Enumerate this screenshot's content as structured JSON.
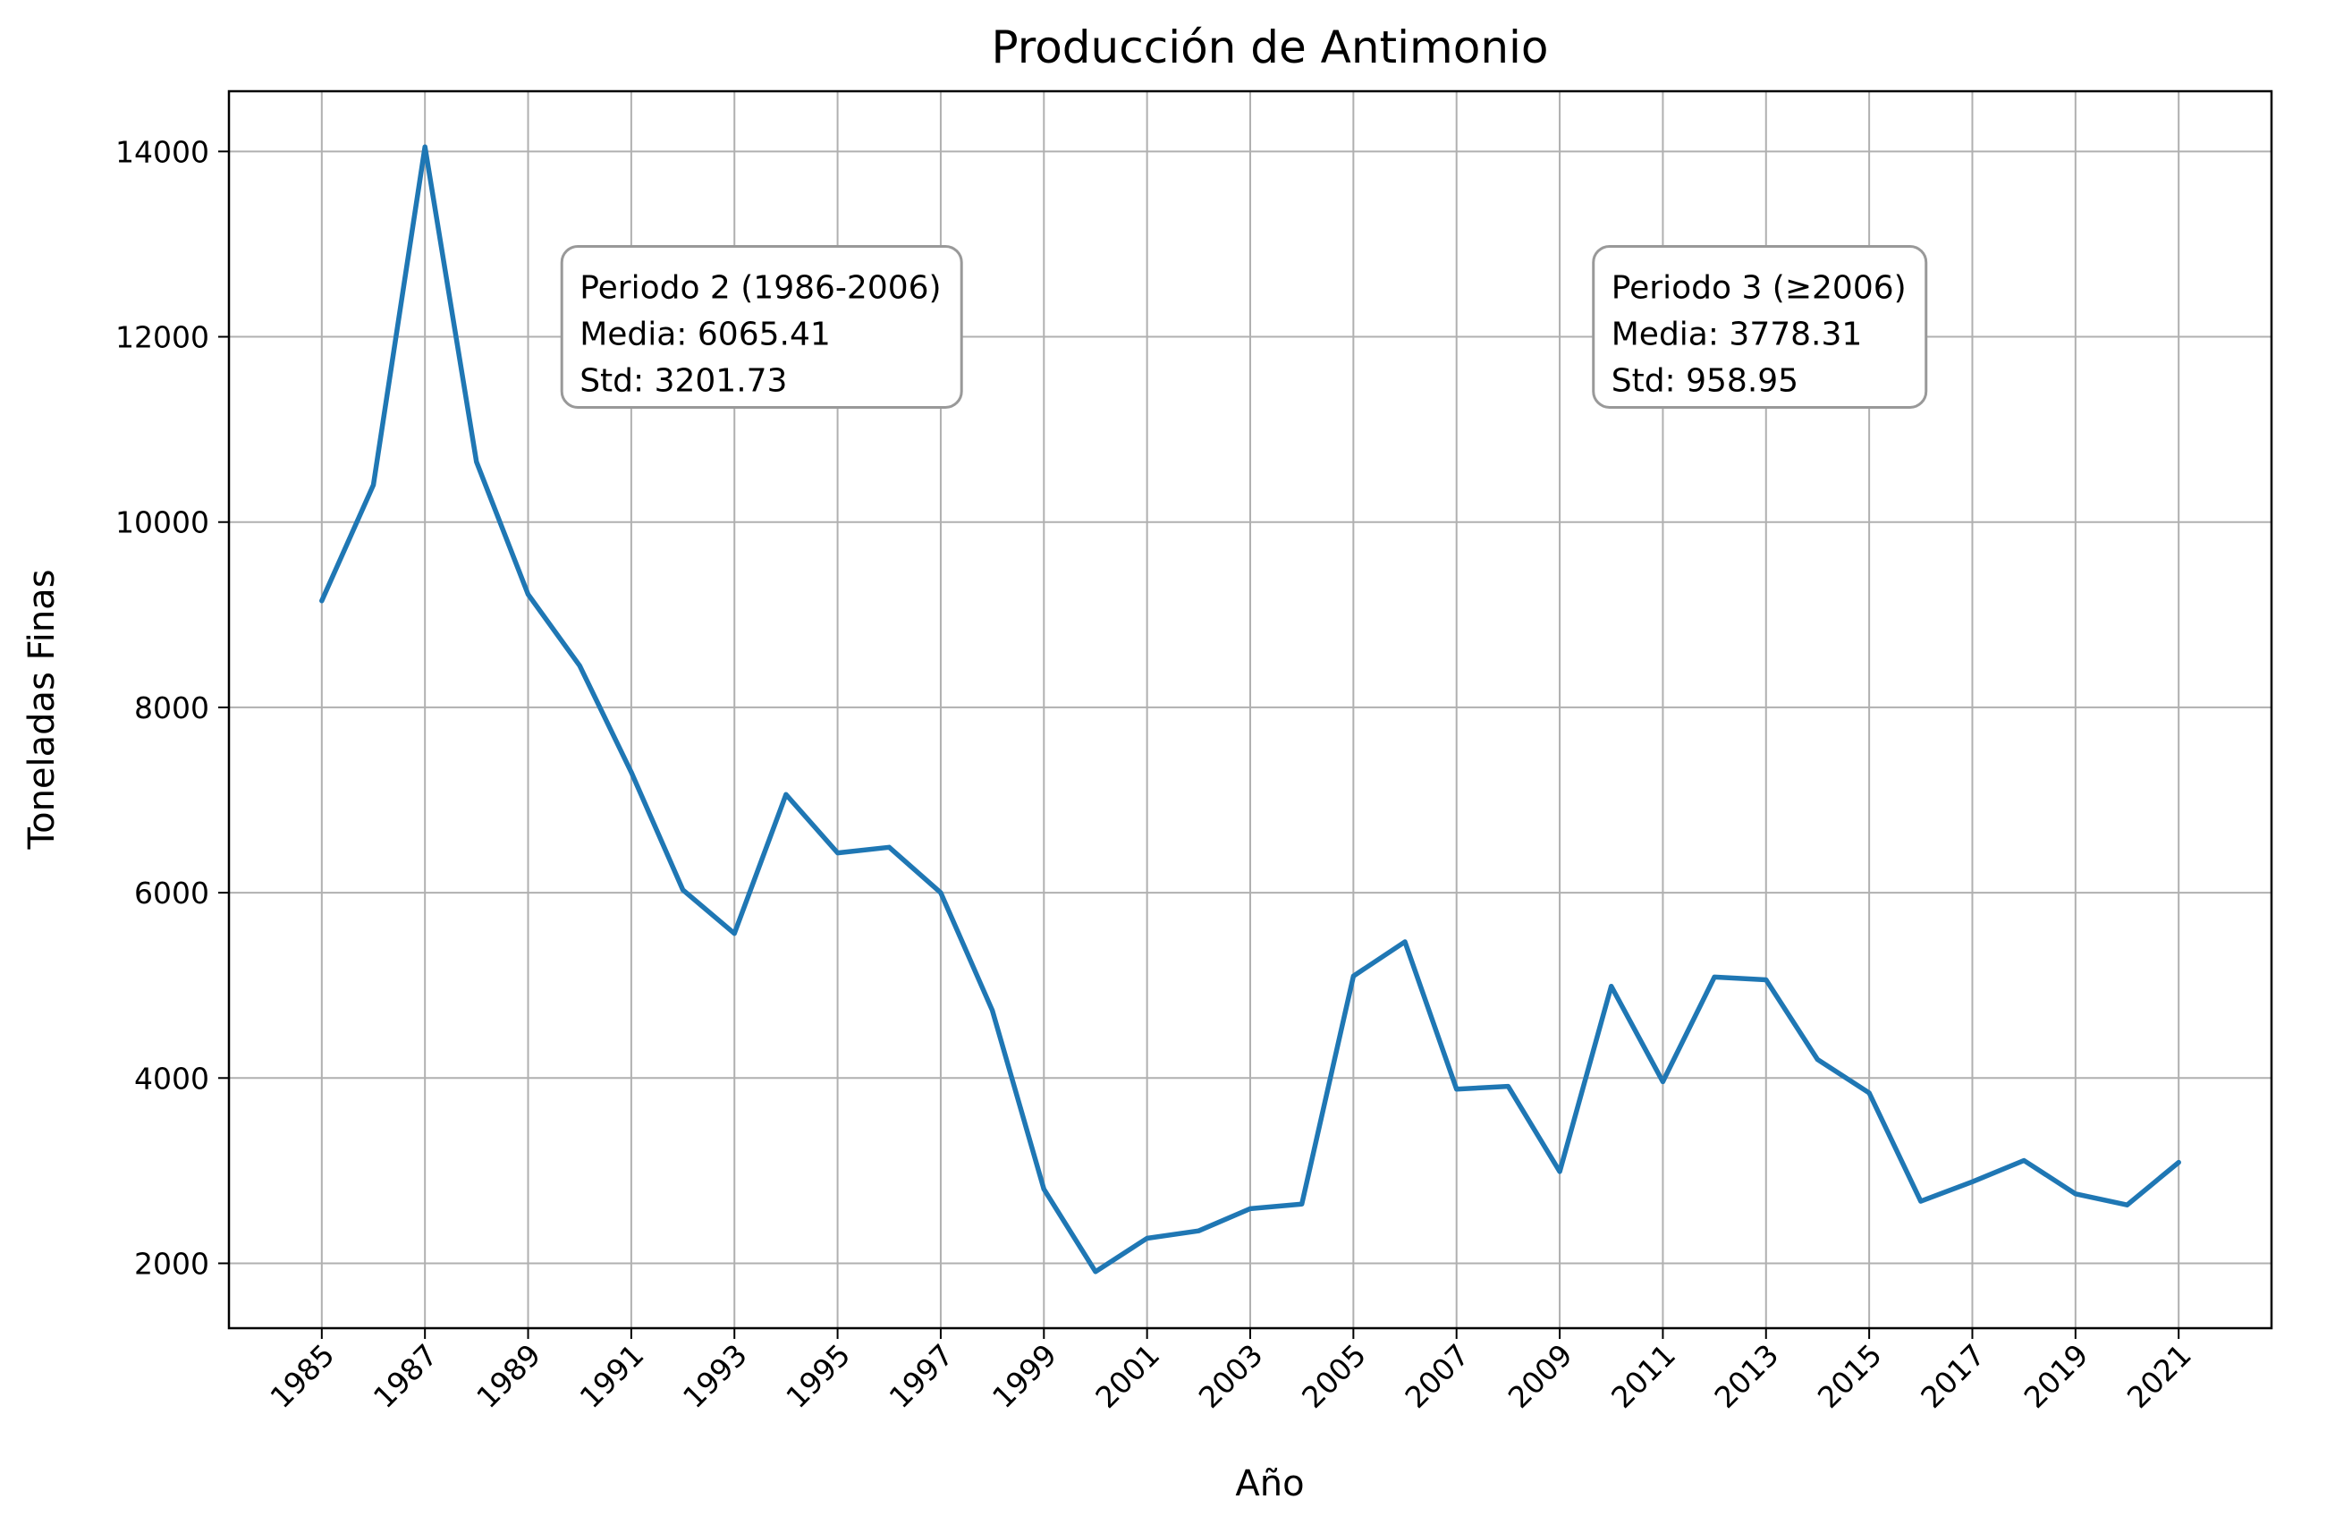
{
  "chart_data": {
    "type": "line",
    "title": "Producción de Antimonio",
    "xlabel": "Año",
    "ylabel": "Toneladas Finas",
    "x": [
      1985,
      1986,
      1987,
      1988,
      1989,
      1990,
      1991,
      1992,
      1993,
      1994,
      1995,
      1996,
      1997,
      1998,
      1999,
      2000,
      2001,
      2002,
      2003,
      2004,
      2005,
      2006,
      2007,
      2008,
      2009,
      2010,
      2011,
      2012,
      2013,
      2014,
      2015,
      2016,
      2017,
      2018,
      2019,
      2020,
      2021
    ],
    "series": [
      {
        "values": [
          9150,
          10400,
          14050,
          10650,
          9220,
          8450,
          7300,
          6030,
          5560,
          7060,
          6430,
          6490,
          6000,
          4730,
          2800,
          1910,
          2270,
          2350,
          2590,
          2640,
          5100,
          5470,
          3880,
          3910,
          2990,
          4990,
          3960,
          5090,
          5060,
          4200,
          3840,
          2670,
          2880,
          3110,
          2750,
          2630,
          3090
        ],
        "color": "#1f77b4"
      }
    ],
    "xticks": [
      1985,
      1987,
      1989,
      1991,
      1993,
      1995,
      1997,
      1999,
      2001,
      2003,
      2005,
      2007,
      2009,
      2011,
      2013,
      2015,
      2017,
      2019,
      2021
    ],
    "yticks": [
      2000,
      4000,
      6000,
      8000,
      10000,
      12000,
      14000
    ],
    "xlim": [
      1983.2,
      2022.8
    ],
    "ylim": [
      1300,
      14650
    ],
    "grid": true,
    "annotations": [
      {
        "x": 1990,
        "y": 12300,
        "lines": [
          "Periodo 2 (1986-2006)",
          "Media: 6065.41",
          "Std: 3201.73"
        ]
      },
      {
        "x": 2010,
        "y": 12300,
        "lines": [
          "Periodo 3 (≥2006)",
          "Media: 3778.31",
          "Std: 958.95"
        ]
      }
    ]
  }
}
